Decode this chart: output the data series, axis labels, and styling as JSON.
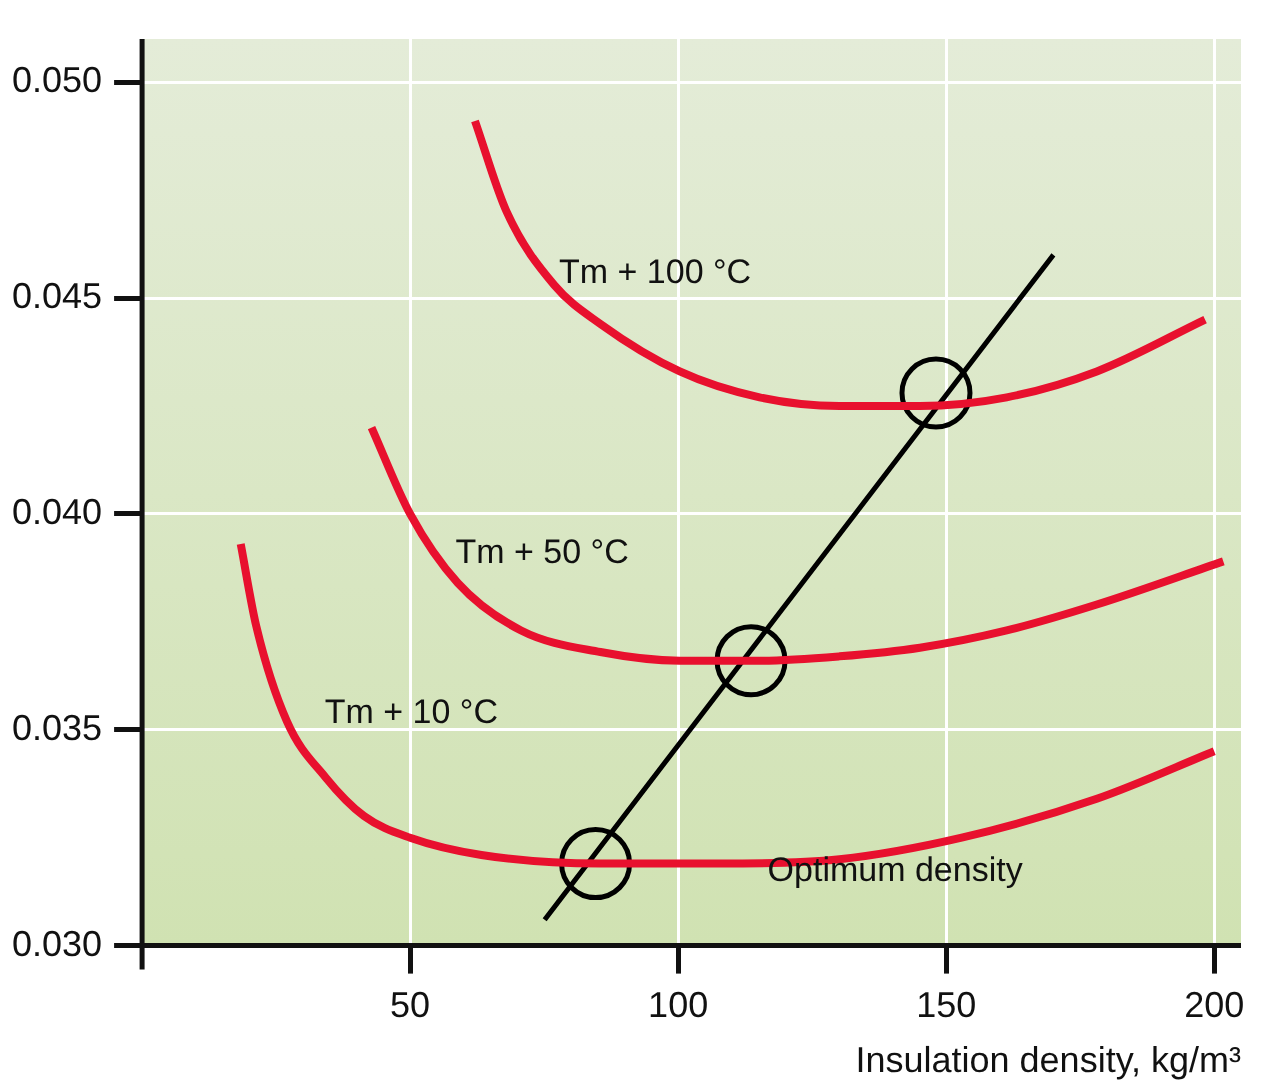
{
  "chart_data": {
    "type": "line",
    "xlabel": "Insulation density, kg/m³",
    "xlim": [
      0,
      205
    ],
    "xticks": [
      50,
      100,
      150,
      200
    ],
    "ylim": [
      0.03,
      0.051
    ],
    "yticks": [
      {
        "value": 0.03,
        "label": "0.030"
      },
      0.035,
      {
        "value": 0.04,
        "label": "0.040"
      },
      0.045,
      {
        "value": 0.05,
        "label": "0.050"
      }
    ],
    "grid": true,
    "legend": false,
    "marker": "none",
    "line_style": "solid",
    "series": [
      {
        "name": "Tm + 10 °C",
        "color": "#e8102e",
        "x": [
          18.4,
          21.3,
          27,
          34.2,
          41.4,
          50,
          63.3,
          85.5,
          107.8,
          130.1,
          152.9,
          178.1,
          200
        ],
        "values": [
          0.0393,
          0.0374,
          0.0352,
          0.0339,
          0.033,
          0.0325,
          0.0321,
          0.0319,
          0.0319,
          0.032,
          0.0325,
          0.0334,
          0.0345
        ]
      },
      {
        "name": "Tm + 50 °C",
        "color": "#e8102e",
        "x": [
          42.8,
          50,
          58.9,
          70.7,
          85.5,
          100.3,
          115.2,
          130.1,
          145.1,
          161.3,
          178.1,
          201.7
        ],
        "values": [
          0.042,
          0.04,
          0.0384,
          0.0373,
          0.0368,
          0.0366,
          0.0366,
          0.0367,
          0.0369,
          0.0373,
          0.0379,
          0.0389
        ]
      },
      {
        "name": "Tm + 100 °C",
        "color": "#e8102e",
        "x": [
          62.1,
          68,
          76.9,
          85.5,
          100.3,
          115.2,
          130.1,
          145.1,
          161.3,
          178.1,
          198.3
        ],
        "values": [
          0.0491,
          0.047,
          0.0453,
          0.0444,
          0.0433,
          0.0427,
          0.0425,
          0.0425,
          0.0427,
          0.0433,
          0.0445
        ]
      },
      {
        "color": "#000000",
        "x": [
          75.1,
          170
        ],
        "values": [
          0.0306,
          0.046
        ]
      },
      {
        "type": "scatter",
        "marker": "circle",
        "color": "#000000",
        "x": [
          84.6,
          113.6,
          148.1
        ],
        "values": [
          0.0319,
          0.0366,
          0.0428
        ]
      }
    ],
    "annotations": [
      "Optimum density"
    ]
  }
}
